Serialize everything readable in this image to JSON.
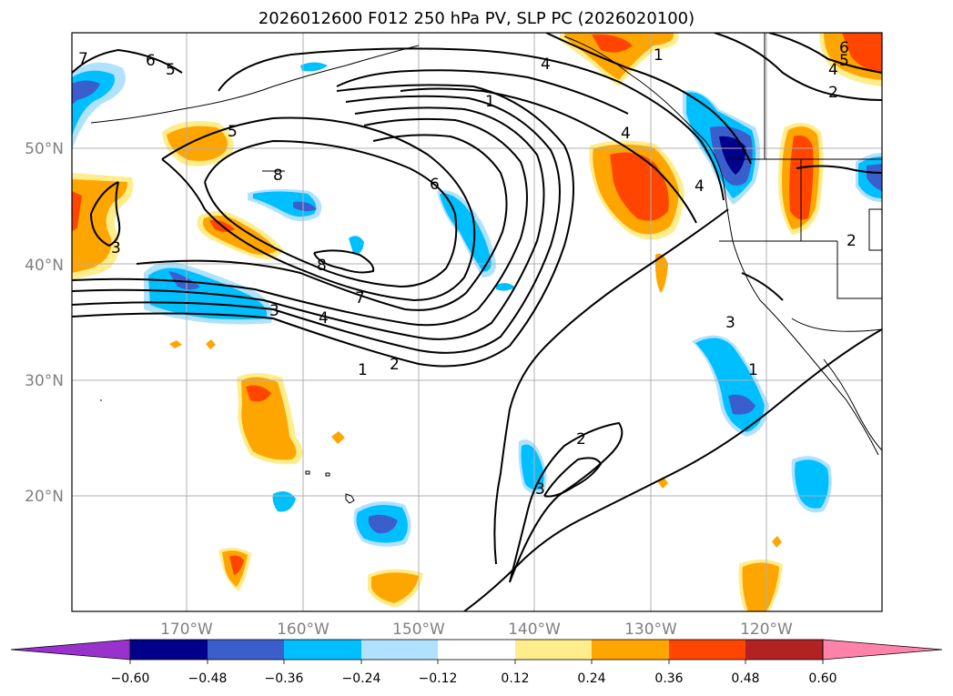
{
  "title": "2026012600 F012 250 hPa PV, SLP PC (2026020100)",
  "latitude_labels": [
    "50°N",
    "40°N",
    "30°N",
    "20°N"
  ],
  "longitude_labels": [
    "170°W",
    "160°W",
    "150°W",
    "140°W",
    "130°W",
    "120°W"
  ],
  "colorbar": {
    "tick_labels": [
      "−0.60",
      "−0.48",
      "−0.36",
      "−0.24",
      "−0.12",
      "0.12",
      "0.24",
      "0.36",
      "0.48",
      "0.60"
    ],
    "colors": [
      "#9932cc",
      "#00008b",
      "#3a5fcd",
      "#00bfff",
      "#b0e2ff",
      "#ffffff",
      "#ffec8b",
      "#ffa500",
      "#ff4500",
      "#b22222",
      "#ff82ab"
    ]
  },
  "contour_labels": [
    "7",
    "6",
    "5",
    "5",
    "8",
    "8",
    "7",
    "4",
    "3",
    "3",
    "1",
    "2",
    "4",
    "1",
    "4",
    "4",
    "6",
    "2",
    "3",
    "3",
    "1",
    "2",
    "1",
    "6",
    "5",
    "4",
    "2"
  ]
}
